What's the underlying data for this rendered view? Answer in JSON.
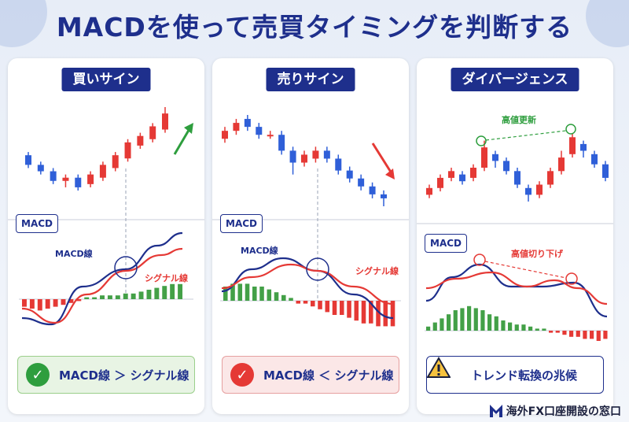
{
  "title": "MACDを使って売買タイミングを判断する",
  "panels": {
    "buy": {
      "badge": "買いサイン",
      "macd_tag": "MACD",
      "macd_line_label": "MACD線",
      "signal_line_label": "シグナル線",
      "result": "MACD線 ＞ シグナル線",
      "result_icon": "check-icon",
      "candles": [
        {
          "o": 12,
          "c": 9,
          "h": 13,
          "l": 8
        },
        {
          "o": 9,
          "c": 7,
          "h": 10,
          "l": 6
        },
        {
          "o": 7,
          "c": 4,
          "h": 8,
          "l": 3
        },
        {
          "o": 4,
          "c": 5,
          "h": 6,
          "l": 2
        },
        {
          "o": 5,
          "c": 2,
          "h": 6,
          "l": 1
        },
        {
          "o": 3,
          "c": 6,
          "h": 7,
          "l": 2
        },
        {
          "o": 5,
          "c": 9,
          "h": 10,
          "l": 4
        },
        {
          "o": 8,
          "c": 12,
          "h": 13,
          "l": 7
        },
        {
          "o": 11,
          "c": 16,
          "h": 17,
          "l": 10
        },
        {
          "o": 15,
          "c": 18,
          "h": 19,
          "l": 14
        },
        {
          "o": 17,
          "c": 21,
          "h": 22,
          "l": 16
        },
        {
          "o": 20,
          "c": 25,
          "h": 27,
          "l": 19
        }
      ],
      "histogram": [
        -4,
        -5,
        -6,
        -5,
        -4,
        -3,
        -2,
        -1,
        1,
        1,
        2,
        2,
        2,
        3,
        3,
        4,
        5,
        6,
        7,
        8,
        8
      ]
    },
    "sell": {
      "badge": "売りサイン",
      "macd_tag": "MACD",
      "macd_line_label": "MACD線",
      "signal_line_label": "シグナル線",
      "result": "MACD線 ＜ シグナル線",
      "result_icon": "check-icon",
      "candles": [
        {
          "o": 19,
          "c": 21,
          "h": 22,
          "l": 18
        },
        {
          "o": 21,
          "c": 23,
          "h": 24,
          "l": 20
        },
        {
          "o": 24,
          "c": 22,
          "h": 25,
          "l": 21
        },
        {
          "o": 22,
          "c": 20,
          "h": 23,
          "l": 19
        },
        {
          "o": 20,
          "c": 20,
          "h": 21,
          "l": 19
        },
        {
          "o": 20,
          "c": 16,
          "h": 21,
          "l": 15
        },
        {
          "o": 16,
          "c": 13,
          "h": 17,
          "l": 10
        },
        {
          "o": 13,
          "c": 15,
          "h": 16,
          "l": 12
        },
        {
          "o": 14,
          "c": 16,
          "h": 17,
          "l": 13
        },
        {
          "o": 16,
          "c": 14,
          "h": 17,
          "l": 13
        },
        {
          "o": 14,
          "c": 11,
          "h": 15,
          "l": 10
        },
        {
          "o": 11,
          "c": 9,
          "h": 12,
          "l": 8
        },
        {
          "o": 9,
          "c": 7,
          "h": 10,
          "l": 6
        },
        {
          "o": 7,
          "c": 5,
          "h": 8,
          "l": 4
        },
        {
          "o": 5,
          "c": 4,
          "h": 6,
          "l": 2
        }
      ],
      "histogram": [
        5,
        6,
        6,
        6,
        5,
        5,
        4,
        3,
        2,
        1,
        -1,
        -1,
        -2,
        -3,
        -4,
        -5,
        -5,
        -6,
        -7,
        -8,
        -8,
        -9,
        -9,
        -9
      ]
    },
    "divergence": {
      "badge": "ダイバージェンス",
      "macd_tag": "MACD",
      "price_annotation": "高値更新",
      "macd_annotation": "高値切り下げ",
      "result": "トレンド転換の兆候",
      "result_icon": "warning-icon",
      "candles": [
        {
          "o": 6,
          "c": 8,
          "h": 9,
          "l": 5
        },
        {
          "o": 8,
          "c": 11,
          "h": 12,
          "l": 7
        },
        {
          "o": 11,
          "c": 13,
          "h": 14,
          "l": 10
        },
        {
          "o": 12,
          "c": 10,
          "h": 13,
          "l": 9
        },
        {
          "o": 11,
          "c": 14,
          "h": 15,
          "l": 10
        },
        {
          "o": 14,
          "c": 20,
          "h": 22,
          "l": 13
        },
        {
          "o": 18,
          "c": 16,
          "h": 19,
          "l": 14
        },
        {
          "o": 16,
          "c": 13,
          "h": 17,
          "l": 12
        },
        {
          "o": 13,
          "c": 9,
          "h": 14,
          "l": 8
        },
        {
          "o": 8,
          "c": 6,
          "h": 9,
          "l": 4
        },
        {
          "o": 6,
          "c": 9,
          "h": 10,
          "l": 5
        },
        {
          "o": 9,
          "c": 13,
          "h": 14,
          "l": 8
        },
        {
          "o": 13,
          "c": 17,
          "h": 19,
          "l": 12
        },
        {
          "o": 18,
          "c": 23,
          "h": 24,
          "l": 17
        },
        {
          "o": 21,
          "c": 19,
          "h": 22,
          "l": 17
        },
        {
          "o": 18,
          "c": 15,
          "h": 19,
          "l": 14
        },
        {
          "o": 15,
          "c": 11,
          "h": 16,
          "l": 10
        }
      ],
      "histogram": [
        2,
        4,
        6,
        8,
        10,
        11,
        12,
        11,
        10,
        8,
        7,
        5,
        4,
        3,
        3,
        2,
        1,
        1,
        -1,
        -1,
        -2,
        -3,
        -3,
        -4,
        -4,
        -5,
        -4
      ]
    }
  },
  "footer": {
    "logo_icon": "m-logo-icon",
    "text": "海外FX口座開設の窓口"
  },
  "colors": {
    "navy": "#1e2f8c",
    "up": "#e53935",
    "down": "#2f5fd8",
    "hist_pos": "#43a047",
    "hist_neg": "#e53935",
    "arrow_up": "#2e9e3e",
    "arrow_down": "#e53935"
  }
}
